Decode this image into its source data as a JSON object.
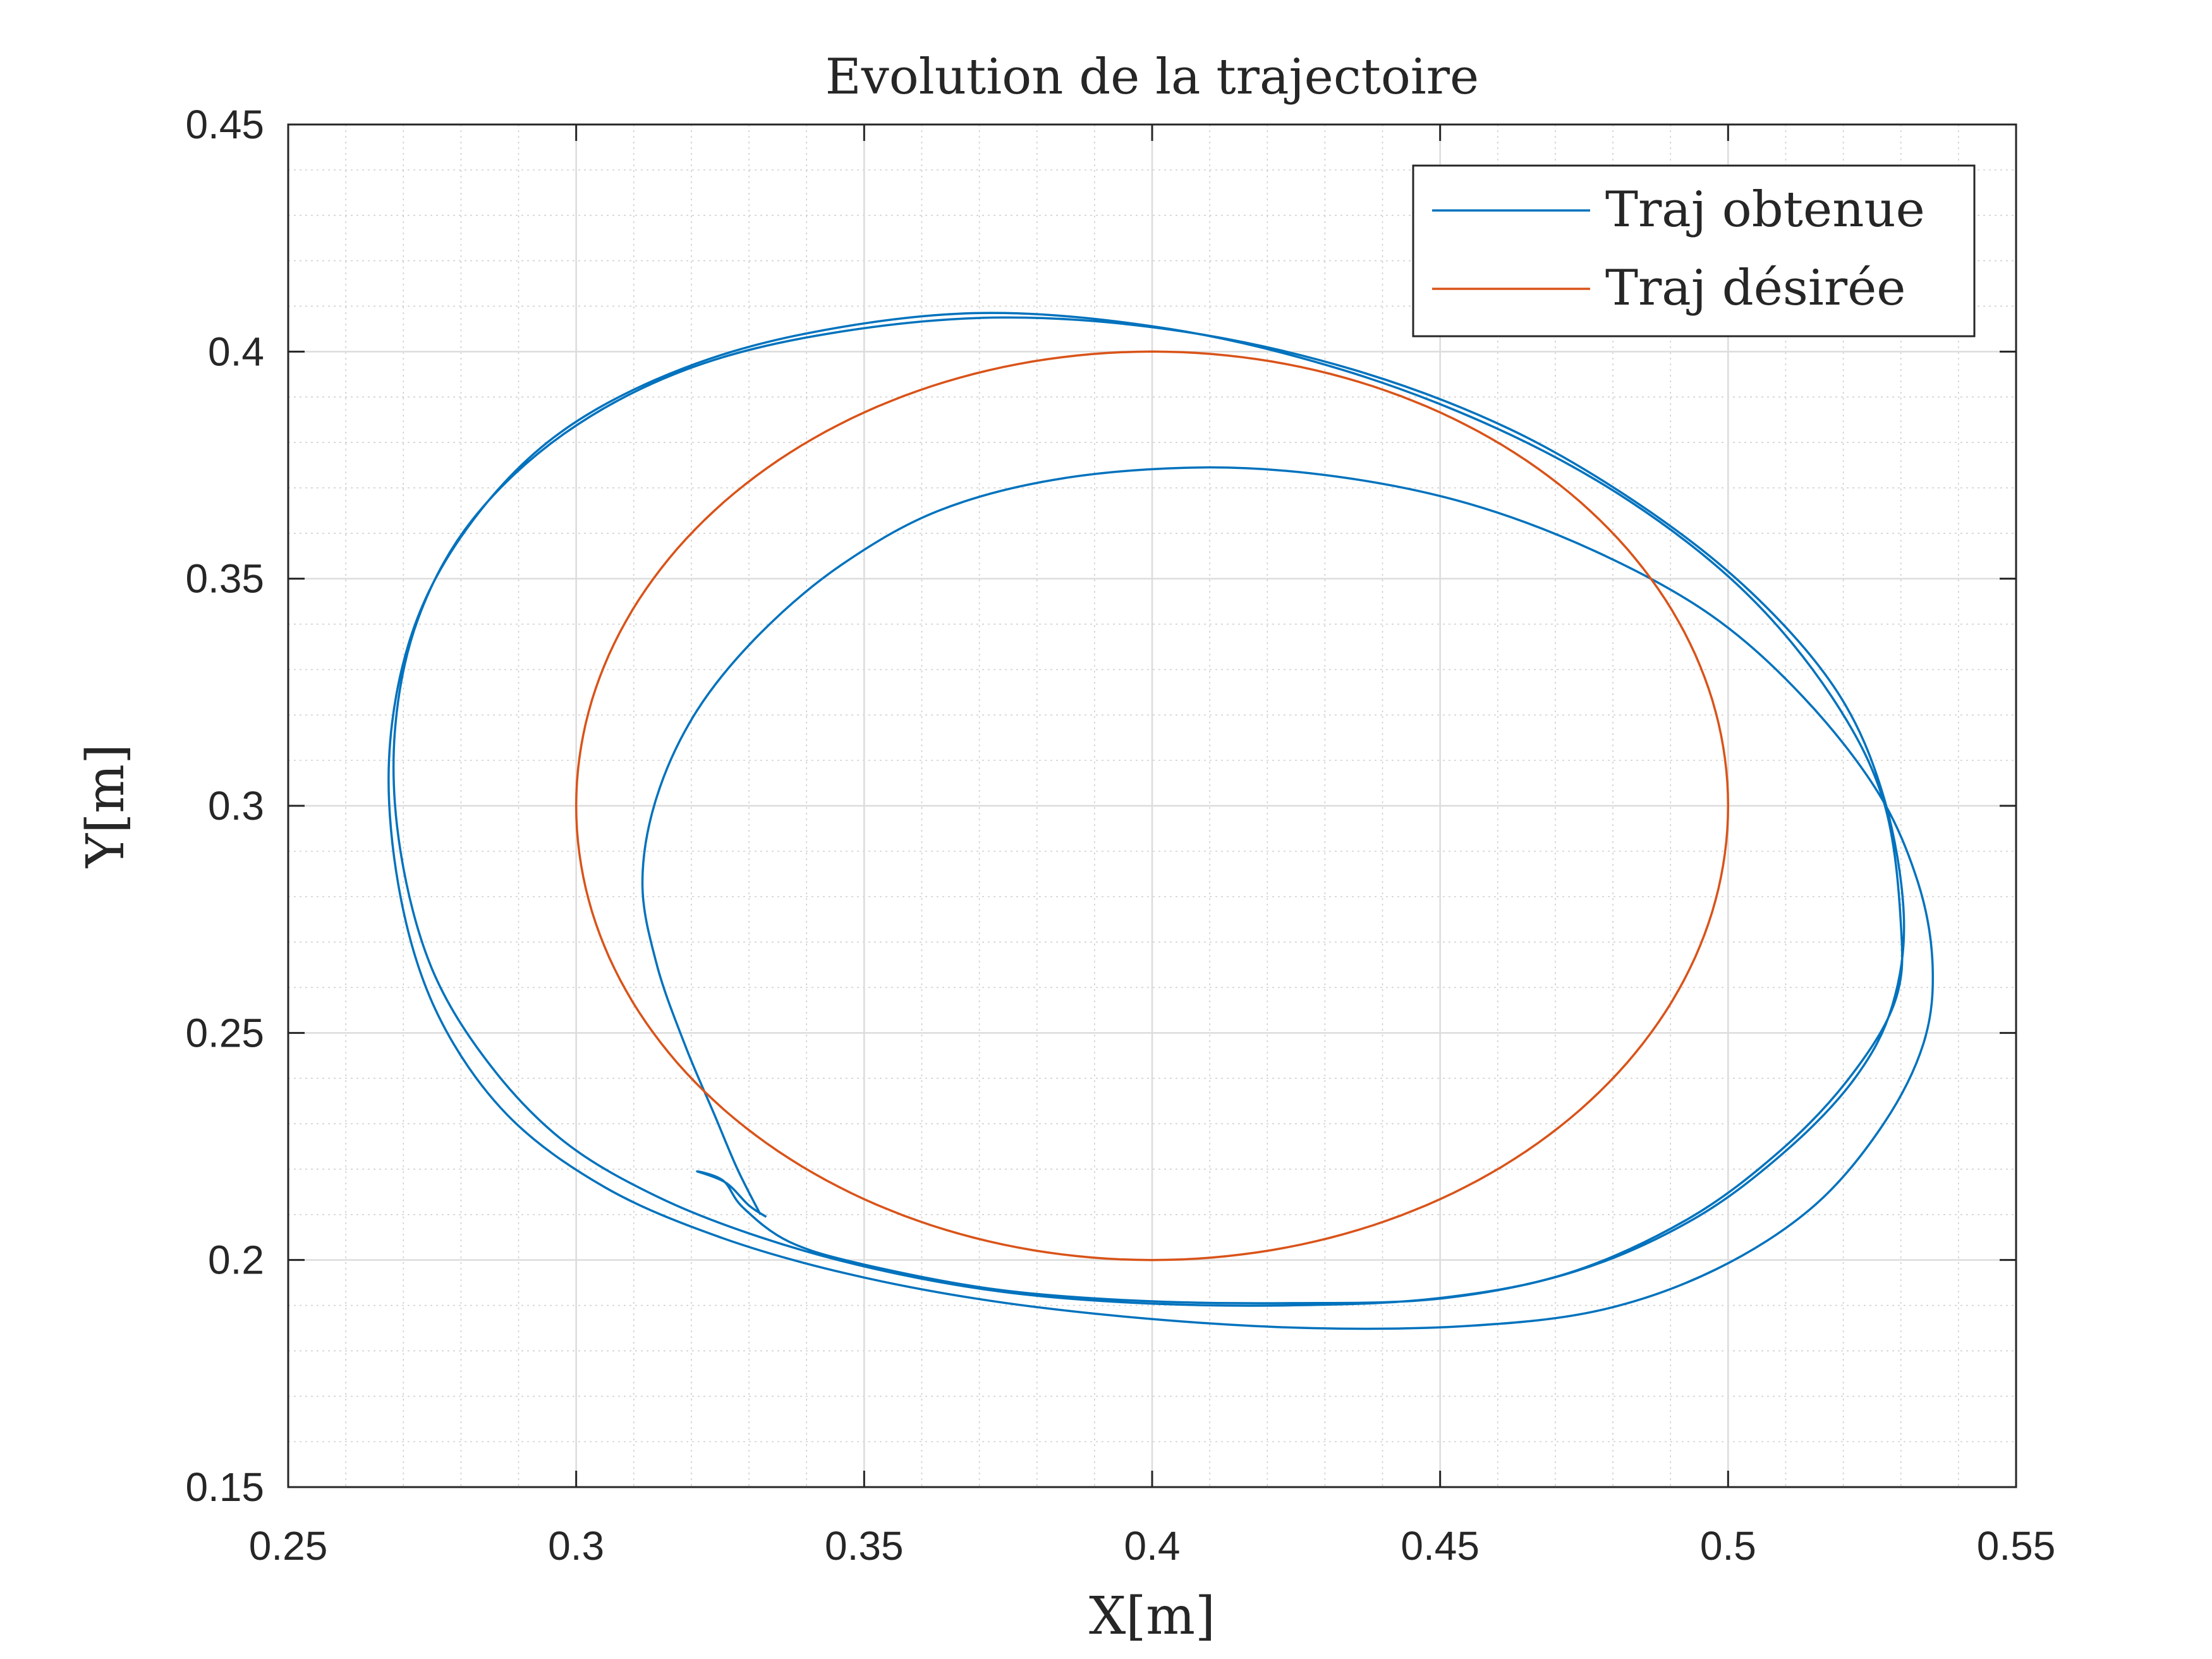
{
  "chart_data": {
    "type": "line",
    "title": "Evolution de la trajectoire",
    "xlabel": "X[m]",
    "ylabel": "Y[m]",
    "xlim": [
      0.25,
      0.55
    ],
    "ylim": [
      0.15,
      0.45
    ],
    "grid": "major and minor",
    "legend_position": "top-right",
    "x_ticks": [
      "0.25",
      "0.3",
      "0.35",
      "0.4",
      "0.45",
      "0.5",
      "0.55"
    ],
    "y_ticks": [
      "0.15",
      "0.2",
      "0.25",
      "0.3",
      "0.35",
      "0.4",
      "0.45"
    ],
    "series": [
      {
        "name": "Traj obtenue",
        "color": "#0072BD",
        "points": [
          [
            0.332,
            0.21
          ],
          [
            0.328,
            0.22
          ],
          [
            0.324,
            0.232
          ],
          [
            0.319,
            0.247
          ],
          [
            0.314,
            0.265
          ],
          [
            0.3115,
            0.283
          ],
          [
            0.314,
            0.302
          ],
          [
            0.321,
            0.321
          ],
          [
            0.332,
            0.338
          ],
          [
            0.346,
            0.353
          ],
          [
            0.363,
            0.365
          ],
          [
            0.384,
            0.372
          ],
          [
            0.409,
            0.3745
          ],
          [
            0.432,
            0.3725
          ],
          [
            0.455,
            0.3665
          ],
          [
            0.477,
            0.356
          ],
          [
            0.497,
            0.342
          ],
          [
            0.513,
            0.324
          ],
          [
            0.526,
            0.303
          ],
          [
            0.533,
            0.283
          ],
          [
            0.5355,
            0.265
          ],
          [
            0.534,
            0.248
          ],
          [
            0.527,
            0.23
          ],
          [
            0.515,
            0.212
          ],
          [
            0.498,
            0.198
          ],
          [
            0.478,
            0.189
          ],
          [
            0.455,
            0.1855
          ],
          [
            0.428,
            0.185
          ],
          [
            0.4,
            0.187
          ],
          [
            0.372,
            0.191
          ],
          [
            0.347,
            0.197
          ],
          [
            0.325,
            0.205
          ],
          [
            0.305,
            0.216
          ],
          [
            0.288,
            0.232
          ],
          [
            0.276,
            0.254
          ],
          [
            0.2695,
            0.28
          ],
          [
            0.2675,
            0.31
          ],
          [
            0.2715,
            0.338
          ],
          [
            0.281,
            0.361
          ],
          [
            0.296,
            0.381
          ],
          [
            0.316,
            0.395
          ],
          [
            0.34,
            0.404
          ],
          [
            0.3705,
            0.4085
          ],
          [
            0.403,
            0.405
          ],
          [
            0.433,
            0.396
          ],
          [
            0.46,
            0.383
          ],
          [
            0.483,
            0.367
          ],
          [
            0.503,
            0.347
          ],
          [
            0.518,
            0.324
          ],
          [
            0.527,
            0.301
          ],
          [
            0.53,
            0.274
          ],
          [
            0.529,
            0.257
          ],
          [
            0.521,
            0.24
          ],
          [
            0.509,
            0.224
          ],
          [
            0.493,
            0.209
          ],
          [
            0.472,
            0.197
          ],
          [
            0.449,
            0.1915
          ],
          [
            0.4235,
            0.19
          ],
          [
            0.398,
            0.1905
          ],
          [
            0.374,
            0.193
          ],
          [
            0.352,
            0.198
          ],
          [
            0.332,
            0.205
          ],
          [
            0.314,
            0.214
          ],
          [
            0.298,
            0.226
          ],
          [
            0.285,
            0.243
          ],
          [
            0.275,
            0.264
          ],
          [
            0.2695,
            0.29
          ],
          [
            0.2685,
            0.316
          ],
          [
            0.2725,
            0.341
          ],
          [
            0.282,
            0.363
          ],
          [
            0.298,
            0.382
          ],
          [
            0.319,
            0.396
          ],
          [
            0.344,
            0.404
          ],
          [
            0.374,
            0.4075
          ],
          [
            0.405,
            0.4045
          ],
          [
            0.435,
            0.396
          ],
          [
            0.462,
            0.383
          ],
          [
            0.485,
            0.366
          ],
          [
            0.504,
            0.347
          ],
          [
            0.519,
            0.325
          ],
          [
            0.527,
            0.302
          ],
          [
            0.5305,
            0.276
          ],
          [
            0.5285,
            0.256
          ],
          [
            0.522,
            0.24
          ],
          [
            0.51,
            0.224
          ],
          [
            0.494,
            0.209
          ],
          [
            0.4735,
            0.1975
          ],
          [
            0.45,
            0.1915
          ],
          [
            0.424,
            0.1905
          ],
          [
            0.398,
            0.191
          ],
          [
            0.373,
            0.1935
          ],
          [
            0.35,
            0.199
          ],
          [
            0.337,
            0.204
          ],
          [
            0.329,
            0.2115
          ],
          [
            0.3255,
            0.2175
          ],
          [
            0.321,
            0.2195
          ],
          [
            0.326,
            0.217
          ],
          [
            0.33,
            0.212
          ],
          [
            0.333,
            0.2095
          ]
        ]
      },
      {
        "name": "Traj désirée",
        "color": "#D95319",
        "center": [
          0.4,
          0.3
        ],
        "radius": 0.1
      }
    ]
  },
  "legend": {
    "entries": [
      "Traj obtenue",
      "Traj désirée"
    ]
  }
}
